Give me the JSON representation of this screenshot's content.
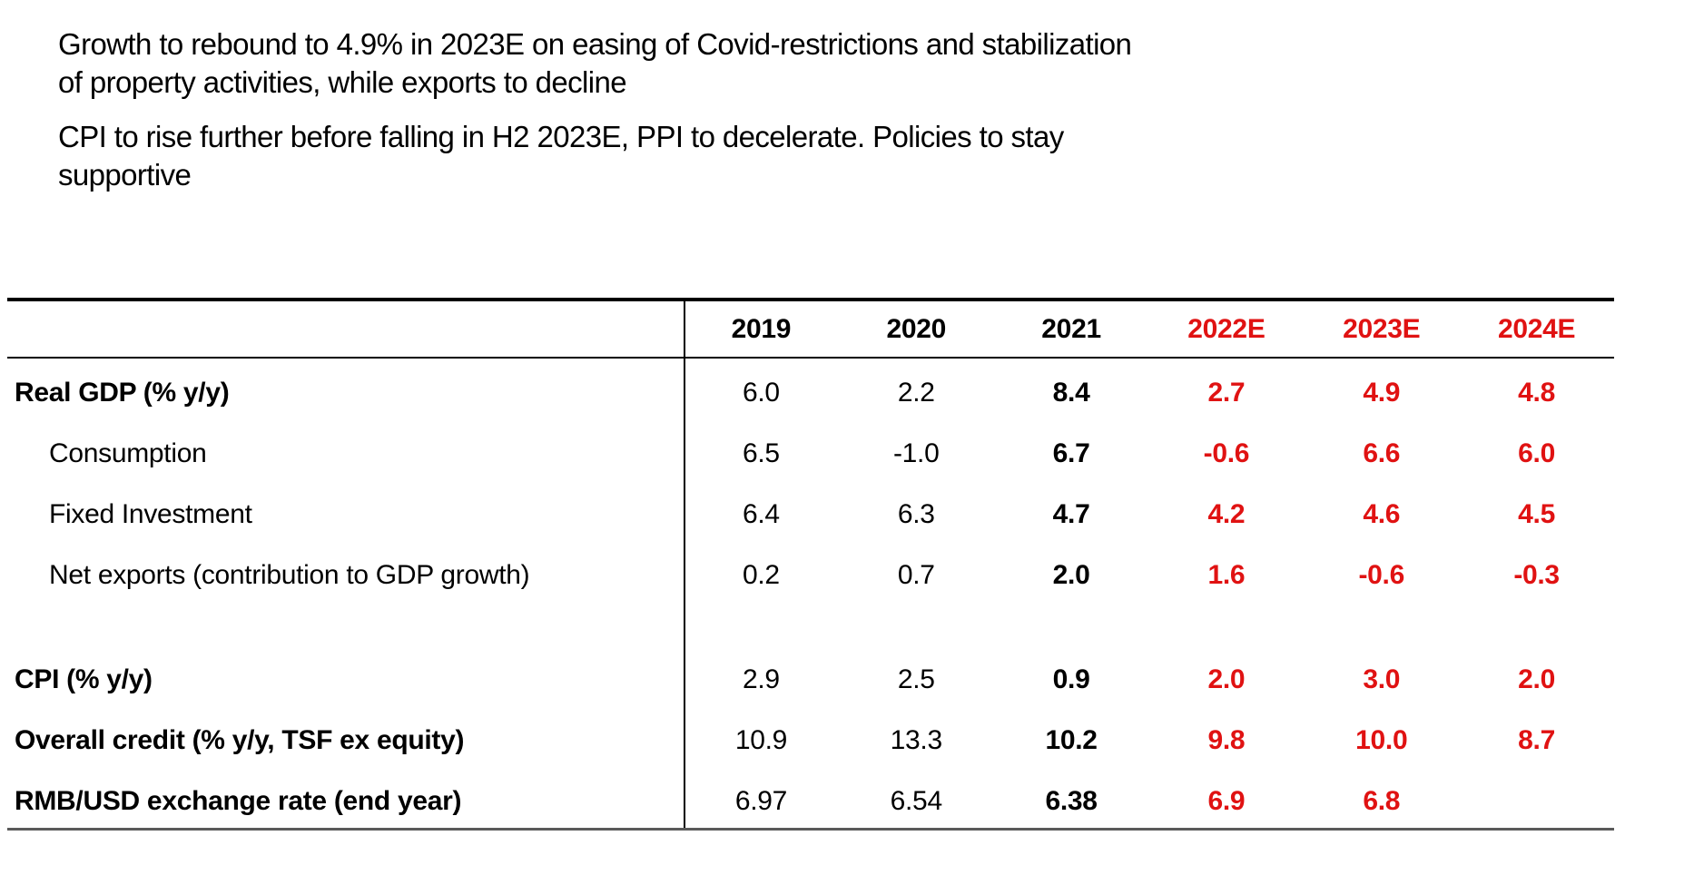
{
  "colors": {
    "accent_red": "#e01212",
    "rule_bottom": "#5a5a5a",
    "text": "#000000",
    "background": "#ffffff"
  },
  "intro": {
    "paragraph1": "Growth to rebound to 4.9% in 2023E on easing of Covid-restrictions and stabilization\nof property activities, while exports to decline",
    "paragraph2": "CPI to rise further before falling in H2 2023E, PPI to decelerate. Policies to stay\nsupportive"
  },
  "table": {
    "columns": [
      {
        "label": "2019",
        "style": "plain"
      },
      {
        "label": "2020",
        "style": "plain"
      },
      {
        "label": "2021",
        "style": "bold"
      },
      {
        "label": "2022E",
        "style": "estimate"
      },
      {
        "label": "2023E",
        "style": "estimate"
      },
      {
        "label": "2024E",
        "style": "estimate"
      }
    ],
    "rows": [
      {
        "label": "Real GDP (% y/y)",
        "bold": true,
        "indent": false,
        "spacer_before": false,
        "values": [
          "6.0",
          "2.2",
          "8.4",
          "2.7",
          "4.9",
          "4.8"
        ]
      },
      {
        "label": "Consumption",
        "bold": false,
        "indent": true,
        "spacer_before": false,
        "values": [
          "6.5",
          "-1.0",
          "6.7",
          "-0.6",
          "6.6",
          "6.0"
        ]
      },
      {
        "label": "Fixed Investment",
        "bold": false,
        "indent": true,
        "spacer_before": false,
        "values": [
          "6.4",
          "6.3",
          "4.7",
          "4.2",
          "4.6",
          "4.5"
        ]
      },
      {
        "label": "Net exports (contribution to GDP growth)",
        "bold": false,
        "indent": true,
        "spacer_before": false,
        "values": [
          "0.2",
          "0.7",
          "2.0",
          "1.6",
          "-0.6",
          "-0.3"
        ]
      },
      {
        "label": "CPI (% y/y)",
        "bold": true,
        "indent": false,
        "spacer_before": true,
        "values": [
          "2.9",
          "2.5",
          "0.9",
          "2.0",
          "3.0",
          "2.0"
        ]
      },
      {
        "label": "Overall credit (% y/y, TSF ex equity)",
        "bold": true,
        "indent": false,
        "spacer_before": false,
        "values": [
          "10.9",
          "13.3",
          "10.2",
          "9.8",
          "10.0",
          "8.7"
        ]
      },
      {
        "label": "RMB/USD exchange rate (end year)",
        "bold": true,
        "indent": false,
        "spacer_before": false,
        "values": [
          "6.97",
          "6.54",
          "6.38",
          "6.9",
          "6.8",
          ""
        ]
      }
    ]
  },
  "chart_data": {
    "type": "table",
    "title": "",
    "categories": [
      "2019",
      "2020",
      "2021",
      "2022E",
      "2023E",
      "2024E"
    ],
    "series": [
      {
        "name": "Real GDP (% y/y)",
        "values": [
          6.0,
          2.2,
          8.4,
          2.7,
          4.9,
          4.8
        ]
      },
      {
        "name": "Consumption",
        "values": [
          6.5,
          -1.0,
          6.7,
          -0.6,
          6.6,
          6.0
        ]
      },
      {
        "name": "Fixed Investment",
        "values": [
          6.4,
          6.3,
          4.7,
          4.2,
          4.6,
          4.5
        ]
      },
      {
        "name": "Net exports (contribution to GDP growth)",
        "values": [
          0.2,
          0.7,
          2.0,
          1.6,
          -0.6,
          -0.3
        ]
      },
      {
        "name": "CPI (% y/y)",
        "values": [
          2.9,
          2.5,
          0.9,
          2.0,
          3.0,
          2.0
        ]
      },
      {
        "name": "Overall credit (% y/y, TSF ex equity)",
        "values": [
          10.9,
          13.3,
          10.2,
          9.8,
          10.0,
          8.7
        ]
      },
      {
        "name": "RMB/USD exchange rate (end year)",
        "values": [
          6.97,
          6.54,
          6.38,
          6.9,
          6.8,
          null
        ]
      }
    ]
  }
}
